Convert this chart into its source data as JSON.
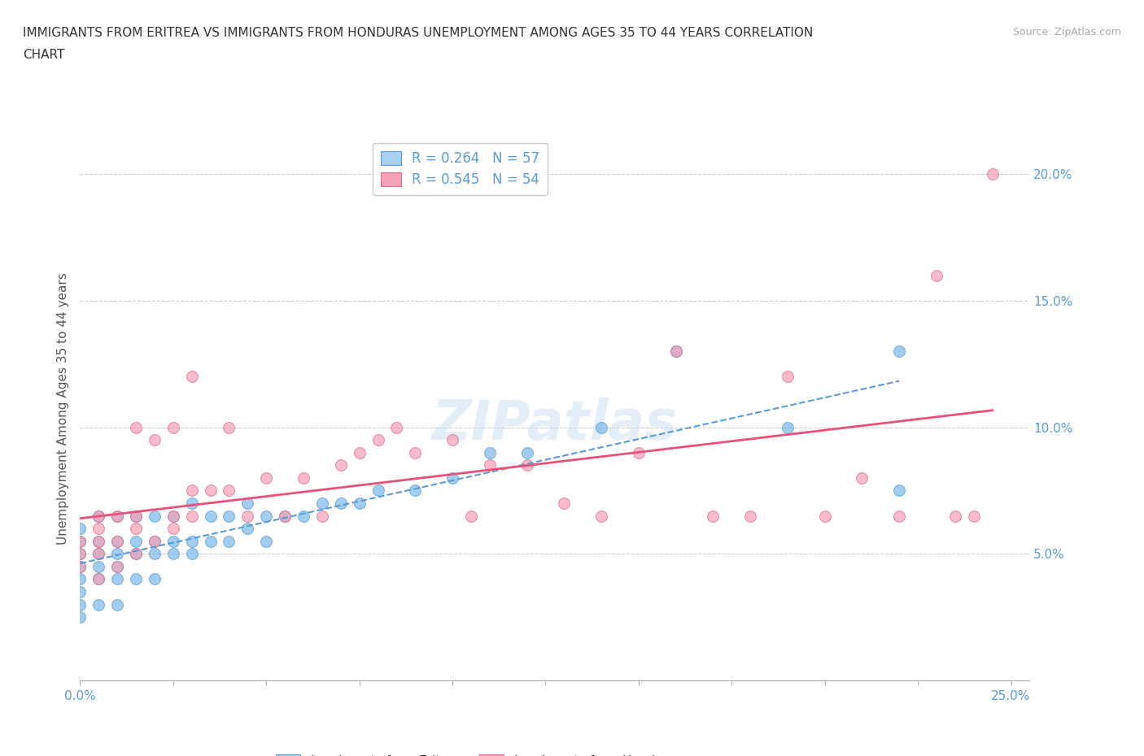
{
  "title_line1": "IMMIGRANTS FROM ERITREA VS IMMIGRANTS FROM HONDURAS UNEMPLOYMENT AMONG AGES 35 TO 44 YEARS CORRELATION",
  "title_line2": "CHART",
  "source": "Source: ZipAtlas.com",
  "xlim": [
    0.0,
    0.255
  ],
  "ylim": [
    0.0,
    0.215
  ],
  "ylabel_ticks": [
    0.05,
    0.1,
    0.15,
    0.2
  ],
  "ylabel_labels": [
    "5.0%",
    "10.0%",
    "15.0%",
    "20.0%"
  ],
  "xtick_left_label": "0.0%",
  "xtick_right_label": "25.0%",
  "eritrea_color": "#7bb8e8",
  "eritrea_edge": "#5a9fd4",
  "honduras_color": "#f4a0b5",
  "honduras_edge": "#e07090",
  "eritrea_trend_color": "#5b9bd5",
  "honduras_trend_color": "#e8527a",
  "eritrea_R": 0.264,
  "eritrea_N": 57,
  "honduras_R": 0.545,
  "honduras_N": 54,
  "watermark": "ZIPatlas",
  "legend_label_eritrea": "Immigrants from Eritrea",
  "legend_label_honduras": "Immigrants from Honduras",
  "eritrea_x": [
    0.0,
    0.0,
    0.0,
    0.0,
    0.0,
    0.0,
    0.0,
    0.0,
    0.005,
    0.005,
    0.005,
    0.005,
    0.005,
    0.005,
    0.01,
    0.01,
    0.01,
    0.01,
    0.01,
    0.01,
    0.015,
    0.015,
    0.015,
    0.015,
    0.02,
    0.02,
    0.02,
    0.02,
    0.025,
    0.025,
    0.025,
    0.03,
    0.03,
    0.03,
    0.035,
    0.035,
    0.04,
    0.04,
    0.045,
    0.045,
    0.05,
    0.05,
    0.055,
    0.06,
    0.065,
    0.07,
    0.075,
    0.08,
    0.09,
    0.1,
    0.11,
    0.12,
    0.14,
    0.16,
    0.19,
    0.22,
    0.22
  ],
  "eritrea_y": [
    0.025,
    0.03,
    0.035,
    0.04,
    0.045,
    0.05,
    0.055,
    0.06,
    0.03,
    0.04,
    0.045,
    0.05,
    0.055,
    0.065,
    0.03,
    0.04,
    0.045,
    0.05,
    0.055,
    0.065,
    0.04,
    0.05,
    0.055,
    0.065,
    0.04,
    0.05,
    0.055,
    0.065,
    0.05,
    0.055,
    0.065,
    0.05,
    0.055,
    0.07,
    0.055,
    0.065,
    0.055,
    0.065,
    0.06,
    0.07,
    0.055,
    0.065,
    0.065,
    0.065,
    0.07,
    0.07,
    0.07,
    0.075,
    0.075,
    0.08,
    0.09,
    0.09,
    0.1,
    0.13,
    0.1,
    0.075,
    0.13
  ],
  "honduras_x": [
    0.0,
    0.0,
    0.0,
    0.005,
    0.005,
    0.005,
    0.005,
    0.005,
    0.01,
    0.01,
    0.01,
    0.015,
    0.015,
    0.015,
    0.015,
    0.02,
    0.02,
    0.025,
    0.025,
    0.025,
    0.03,
    0.03,
    0.03,
    0.035,
    0.04,
    0.04,
    0.045,
    0.05,
    0.055,
    0.06,
    0.065,
    0.07,
    0.075,
    0.08,
    0.085,
    0.09,
    0.1,
    0.105,
    0.11,
    0.12,
    0.13,
    0.14,
    0.15,
    0.16,
    0.17,
    0.18,
    0.19,
    0.2,
    0.21,
    0.22,
    0.23,
    0.235,
    0.24,
    0.245
  ],
  "honduras_y": [
    0.045,
    0.05,
    0.055,
    0.04,
    0.05,
    0.055,
    0.06,
    0.065,
    0.045,
    0.055,
    0.065,
    0.05,
    0.06,
    0.065,
    0.1,
    0.055,
    0.095,
    0.06,
    0.065,
    0.1,
    0.065,
    0.075,
    0.12,
    0.075,
    0.075,
    0.1,
    0.065,
    0.08,
    0.065,
    0.08,
    0.065,
    0.085,
    0.09,
    0.095,
    0.1,
    0.09,
    0.095,
    0.065,
    0.085,
    0.085,
    0.07,
    0.065,
    0.09,
    0.13,
    0.065,
    0.065,
    0.12,
    0.065,
    0.08,
    0.065,
    0.16,
    0.065,
    0.065,
    0.2
  ]
}
